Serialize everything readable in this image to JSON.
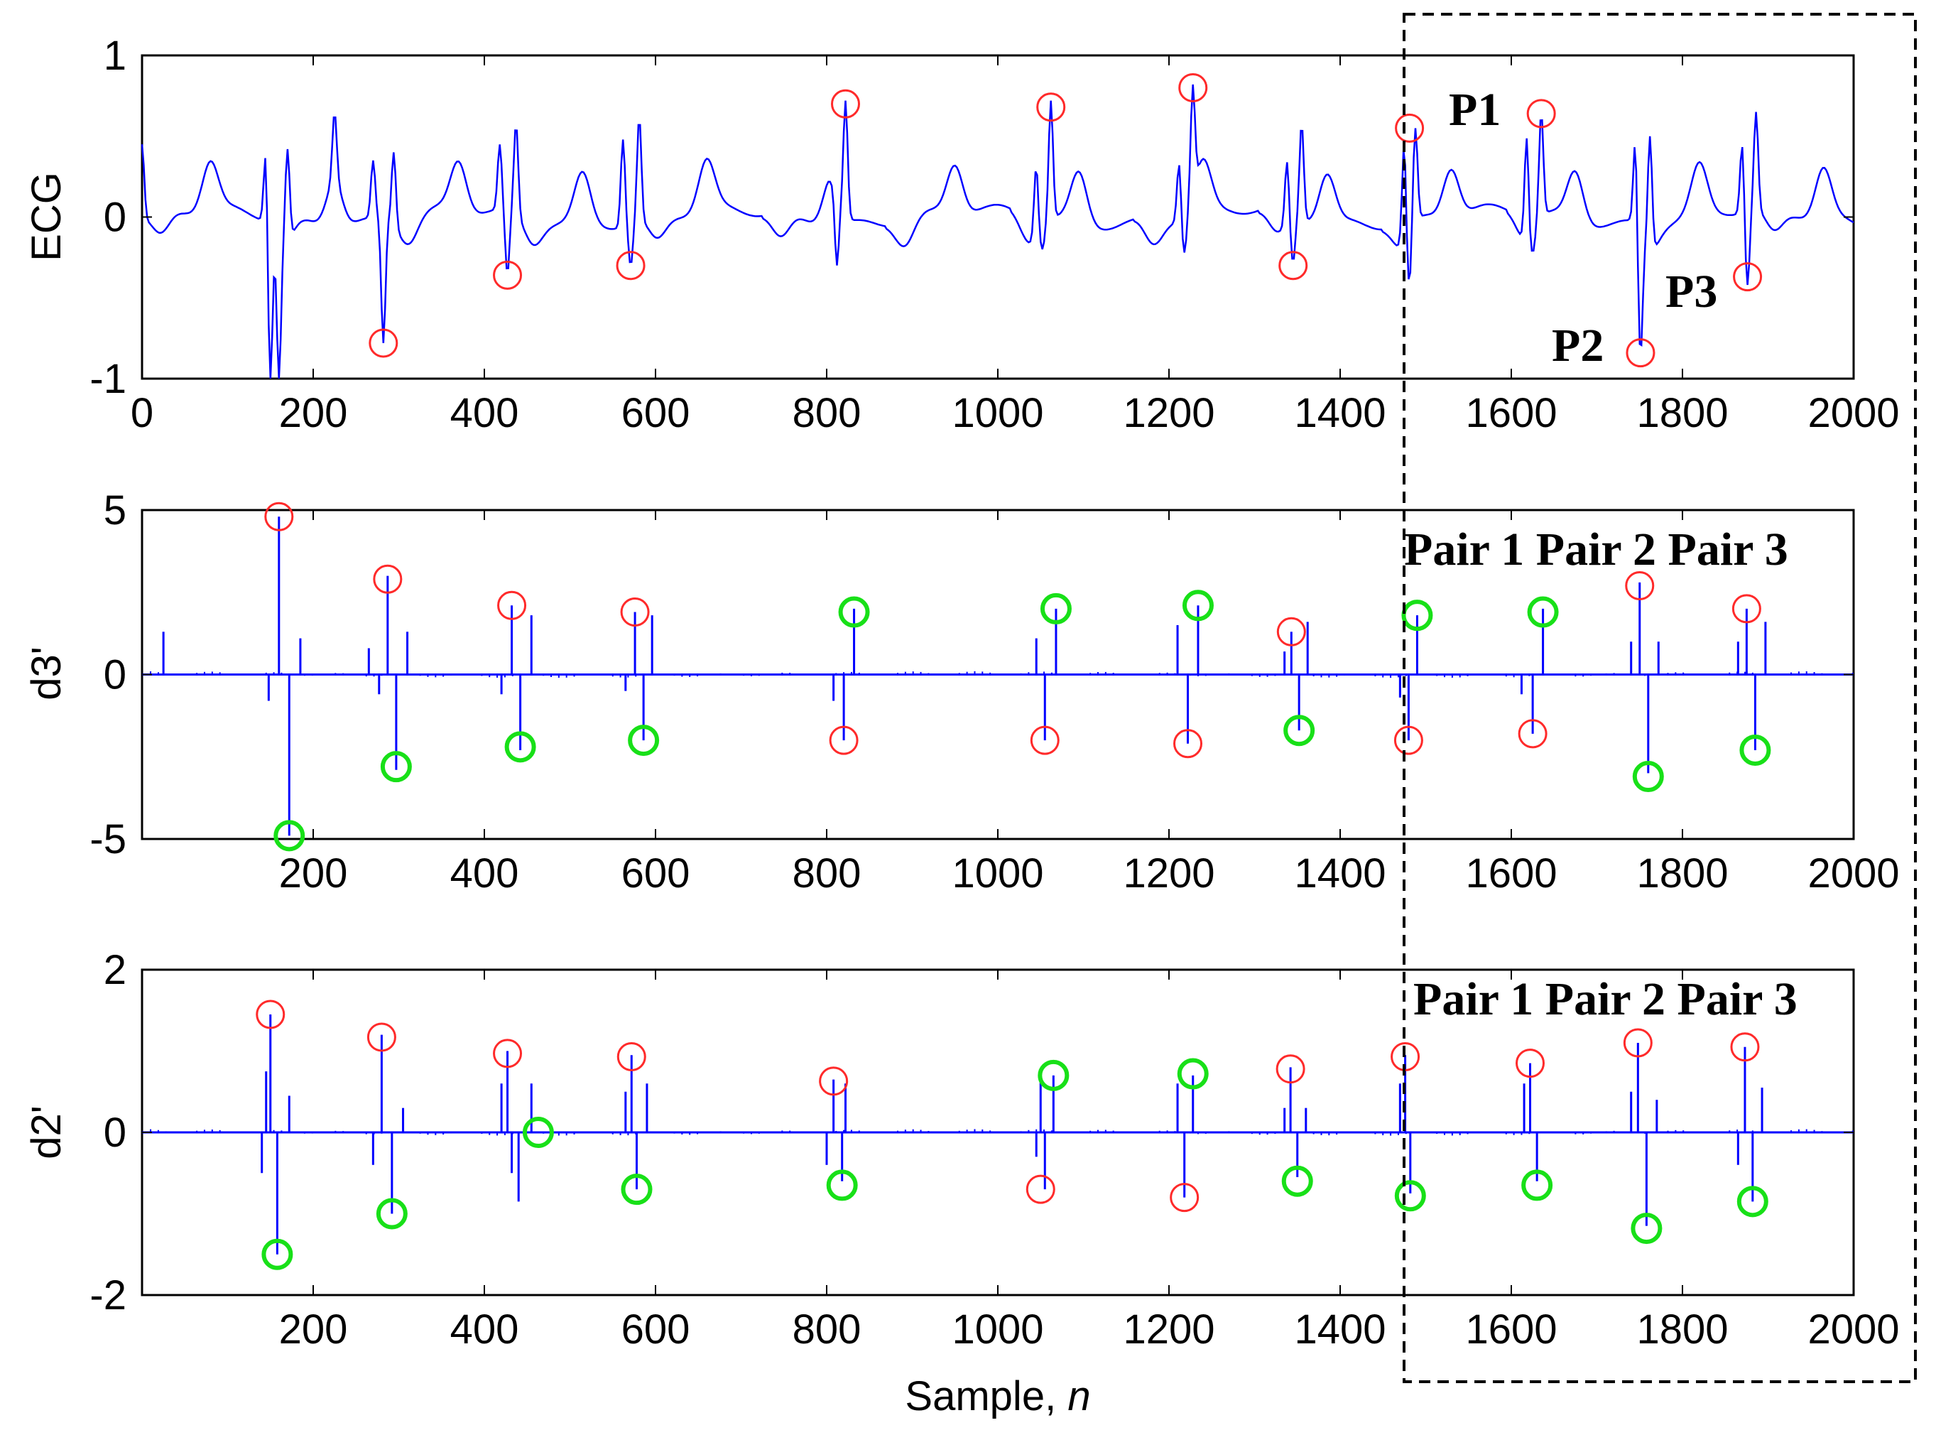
{
  "chart_data": [
    {
      "type": "line",
      "ylabel": "ECG",
      "xlabel": "",
      "xlim": [
        0,
        2000
      ],
      "ylim": [
        -1,
        1
      ],
      "xticks": [
        "0",
        "200",
        "400",
        "600",
        "800",
        "1000",
        "1200",
        "1400",
        "1600",
        "1800",
        "2000"
      ],
      "yticks": [
        "1",
        "0",
        "-1"
      ],
      "series_color": "#0000ff",
      "peaks": [
        {
          "x": 0,
          "y": 0.45
        },
        {
          "x": 145,
          "y": 0.48
        },
        {
          "x": 150,
          "y": -1.0
        },
        {
          "x": 160,
          "y": -1.0
        },
        {
          "x": 170,
          "y": 0.42
        },
        {
          "x": 225,
          "y": 0.65
        },
        {
          "x": 270,
          "y": 0.35
        },
        {
          "x": 282,
          "y": -0.78
        },
        {
          "x": 294,
          "y": 0.4
        },
        {
          "x": 418,
          "y": 0.45
        },
        {
          "x": 427,
          "y": -0.35
        },
        {
          "x": 437,
          "y": 0.58
        },
        {
          "x": 562,
          "y": 0.48
        },
        {
          "x": 571,
          "y": -0.3
        },
        {
          "x": 581,
          "y": 0.62
        },
        {
          "x": 805,
          "y": 0.22
        },
        {
          "x": 812,
          "y": -0.3
        },
        {
          "x": 822,
          "y": 0.72
        },
        {
          "x": 1045,
          "y": 0.32
        },
        {
          "x": 1052,
          "y": -0.2
        },
        {
          "x": 1062,
          "y": 0.72
        },
        {
          "x": 1212,
          "y": 0.35
        },
        {
          "x": 1218,
          "y": -0.22
        },
        {
          "x": 1228,
          "y": 0.82
        },
        {
          "x": 1338,
          "y": 0.35
        },
        {
          "x": 1345,
          "y": -0.28
        },
        {
          "x": 1355,
          "y": 0.58
        },
        {
          "x": 1475,
          "y": 0.48
        },
        {
          "x": 1481,
          "y": -0.42
        },
        {
          "x": 1488,
          "y": 0.55
        },
        {
          "x": 1618,
          "y": 0.5
        },
        {
          "x": 1625,
          "y": -0.22
        },
        {
          "x": 1635,
          "y": 0.65
        },
        {
          "x": 1745,
          "y": 0.5
        },
        {
          "x": 1751,
          "y": -0.85
        },
        {
          "x": 1762,
          "y": 0.5
        },
        {
          "x": 1870,
          "y": 0.48
        },
        {
          "x": 1876,
          "y": -0.42
        },
        {
          "x": 1886,
          "y": 0.65
        }
      ],
      "red_markers": [
        {
          "x": 282,
          "y": -0.78
        },
        {
          "x": 427,
          "y": -0.36
        },
        {
          "x": 571,
          "y": -0.3
        },
        {
          "x": 822,
          "y": 0.7
        },
        {
          "x": 1062,
          "y": 0.68
        },
        {
          "x": 1228,
          "y": 0.8
        },
        {
          "x": 1345,
          "y": -0.3
        },
        {
          "x": 1481,
          "y": 0.55
        },
        {
          "x": 1635,
          "y": 0.64
        },
        {
          "x": 1751,
          "y": -0.84
        },
        {
          "x": 1876,
          "y": -0.37
        }
      ],
      "annotations": [
        {
          "text": "P1",
          "x": 1560,
          "y": 0.62
        },
        {
          "text": "P2",
          "x": 1695,
          "y": -0.8
        },
        {
          "text": "P3",
          "x": 1810,
          "y": -0.5
        }
      ]
    },
    {
      "type": "bar",
      "ylabel": "d3'",
      "xlabel": "",
      "xlim": [
        0,
        2000
      ],
      "ylim": [
        -5,
        5
      ],
      "xticks": [
        "200",
        "400",
        "600",
        "800",
        "1000",
        "1200",
        "1400",
        "1600",
        "1800",
        "2000"
      ],
      "yticks": [
        "5",
        "0",
        "-5"
      ],
      "series_color": "#0000ff",
      "spikes": [
        {
          "x": 25,
          "y": 1.3
        },
        {
          "x": 148,
          "y": -0.8
        },
        {
          "x": 160,
          "y": 4.8
        },
        {
          "x": 172,
          "y": -4.9
        },
        {
          "x": 185,
          "y": 1.1
        },
        {
          "x": 265,
          "y": 0.8
        },
        {
          "x": 277,
          "y": -0.6
        },
        {
          "x": 287,
          "y": 3.0
        },
        {
          "x": 297,
          "y": -2.9
        },
        {
          "x": 310,
          "y": 1.3
        },
        {
          "x": 420,
          "y": -0.6
        },
        {
          "x": 432,
          "y": 2.1
        },
        {
          "x": 442,
          "y": -2.3
        },
        {
          "x": 455,
          "y": 1.8
        },
        {
          "x": 565,
          "y": -0.5
        },
        {
          "x": 576,
          "y": 1.9
        },
        {
          "x": 586,
          "y": -2.0
        },
        {
          "x": 596,
          "y": 1.8
        },
        {
          "x": 808,
          "y": -0.8
        },
        {
          "x": 820,
          "y": -2.0
        },
        {
          "x": 832,
          "y": 2.0
        },
        {
          "x": 1045,
          "y": 1.1
        },
        {
          "x": 1055,
          "y": -2.0
        },
        {
          "x": 1068,
          "y": 2.0
        },
        {
          "x": 1210,
          "y": 1.5
        },
        {
          "x": 1222,
          "y": -2.1
        },
        {
          "x": 1234,
          "y": 2.1
        },
        {
          "x": 1335,
          "y": 0.7
        },
        {
          "x": 1343,
          "y": 1.3
        },
        {
          "x": 1352,
          "y": -1.7
        },
        {
          "x": 1362,
          "y": 1.6
        },
        {
          "x": 1470,
          "y": -0.7
        },
        {
          "x": 1480,
          "y": -2.0
        },
        {
          "x": 1490,
          "y": 1.8
        },
        {
          "x": 1612,
          "y": -0.6
        },
        {
          "x": 1625,
          "y": -1.8
        },
        {
          "x": 1637,
          "y": 2.0
        },
        {
          "x": 1740,
          "y": 1.0
        },
        {
          "x": 1750,
          "y": 2.8
        },
        {
          "x": 1760,
          "y": -3.0
        },
        {
          "x": 1772,
          "y": 1.0
        },
        {
          "x": 1865,
          "y": 1.0
        },
        {
          "x": 1875,
          "y": 2.0
        },
        {
          "x": 1885,
          "y": -2.3
        },
        {
          "x": 1897,
          "y": 1.6
        }
      ],
      "red_markers": [
        {
          "x": 160,
          "y": 4.8
        },
        {
          "x": 287,
          "y": 2.9
        },
        {
          "x": 432,
          "y": 2.1
        },
        {
          "x": 576,
          "y": 1.9
        },
        {
          "x": 820,
          "y": -2.0
        },
        {
          "x": 1055,
          "y": -2.0
        },
        {
          "x": 1222,
          "y": -2.1
        },
        {
          "x": 1343,
          "y": 1.3
        },
        {
          "x": 1480,
          "y": -2.0
        },
        {
          "x": 1625,
          "y": -1.8
        },
        {
          "x": 1750,
          "y": 2.7
        },
        {
          "x": 1875,
          "y": 2.0
        }
      ],
      "green_markers": [
        {
          "x": 172,
          "y": -4.9
        },
        {
          "x": 297,
          "y": -2.8
        },
        {
          "x": 442,
          "y": -2.2
        },
        {
          "x": 586,
          "y": -2.0
        },
        {
          "x": 832,
          "y": 1.9
        },
        {
          "x": 1068,
          "y": 2.0
        },
        {
          "x": 1234,
          "y": 2.1
        },
        {
          "x": 1352,
          "y": -1.7
        },
        {
          "x": 1490,
          "y": 1.8
        },
        {
          "x": 1637,
          "y": 1.9
        },
        {
          "x": 1760,
          "y": -3.1
        },
        {
          "x": 1885,
          "y": -2.3
        }
      ],
      "annotation": "Pair 1 Pair 2 Pair 3"
    },
    {
      "type": "bar",
      "ylabel": "d2'",
      "xlabel": "Sample, n",
      "xlim": [
        0,
        2000
      ],
      "ylim": [
        -2,
        2
      ],
      "xticks": [
        "200",
        "400",
        "600",
        "800",
        "1000",
        "1200",
        "1400",
        "1600",
        "1800",
        "2000"
      ],
      "yticks": [
        "2",
        "0",
        "-2"
      ],
      "series_color": "#0000ff",
      "spikes": [
        {
          "x": 140,
          "y": -0.5
        },
        {
          "x": 145,
          "y": 0.75
        },
        {
          "x": 150,
          "y": 1.45
        },
        {
          "x": 158,
          "y": -1.5
        },
        {
          "x": 172,
          "y": 0.45
        },
        {
          "x": 270,
          "y": -0.4
        },
        {
          "x": 280,
          "y": 1.2
        },
        {
          "x": 292,
          "y": -1.0
        },
        {
          "x": 305,
          "y": 0.3
        },
        {
          "x": 420,
          "y": 0.6
        },
        {
          "x": 427,
          "y": 1.0
        },
        {
          "x": 432,
          "y": -0.5
        },
        {
          "x": 440,
          "y": -0.85
        },
        {
          "x": 455,
          "y": 0.6
        },
        {
          "x": 565,
          "y": 0.5
        },
        {
          "x": 572,
          "y": 0.95
        },
        {
          "x": 578,
          "y": -0.7
        },
        {
          "x": 590,
          "y": 0.6
        },
        {
          "x": 800,
          "y": -0.4
        },
        {
          "x": 808,
          "y": 0.65
        },
        {
          "x": 818,
          "y": -0.6
        },
        {
          "x": 822,
          "y": 0.6
        },
        {
          "x": 1045,
          "y": -0.3
        },
        {
          "x": 1050,
          "y": 0.7
        },
        {
          "x": 1055,
          "y": -0.7
        },
        {
          "x": 1065,
          "y": 0.7
        },
        {
          "x": 1210,
          "y": 0.6
        },
        {
          "x": 1218,
          "y": -0.8
        },
        {
          "x": 1228,
          "y": 0.7
        },
        {
          "x": 1335,
          "y": 0.3
        },
        {
          "x": 1342,
          "y": 0.8
        },
        {
          "x": 1350,
          "y": -0.55
        },
        {
          "x": 1360,
          "y": 0.3
        },
        {
          "x": 1470,
          "y": 0.6
        },
        {
          "x": 1476,
          "y": 0.95
        },
        {
          "x": 1482,
          "y": -0.75
        },
        {
          "x": 1615,
          "y": 0.6
        },
        {
          "x": 1622,
          "y": 0.85
        },
        {
          "x": 1630,
          "y": -0.6
        },
        {
          "x": 1740,
          "y": 0.5
        },
        {
          "x": 1748,
          "y": 1.1
        },
        {
          "x": 1758,
          "y": -1.15
        },
        {
          "x": 1770,
          "y": 0.4
        },
        {
          "x": 1865,
          "y": -0.4
        },
        {
          "x": 1873,
          "y": 1.05
        },
        {
          "x": 1882,
          "y": -0.85
        },
        {
          "x": 1893,
          "y": 0.55
        }
      ],
      "red_markers": [
        {
          "x": 150,
          "y": 1.45
        },
        {
          "x": 280,
          "y": 1.17
        },
        {
          "x": 427,
          "y": 0.97
        },
        {
          "x": 572,
          "y": 0.93
        },
        {
          "x": 808,
          "y": 0.63
        },
        {
          "x": 1050,
          "y": -0.7
        },
        {
          "x": 1218,
          "y": -0.8
        },
        {
          "x": 1342,
          "y": 0.78
        },
        {
          "x": 1476,
          "y": 0.93
        },
        {
          "x": 1622,
          "y": 0.85
        },
        {
          "x": 1748,
          "y": 1.1
        },
        {
          "x": 1873,
          "y": 1.05
        }
      ],
      "green_markers": [
        {
          "x": 158,
          "y": -1.5
        },
        {
          "x": 292,
          "y": -1.0
        },
        {
          "x": 463,
          "y": 0.0
        },
        {
          "x": 578,
          "y": -0.7
        },
        {
          "x": 818,
          "y": -0.65
        },
        {
          "x": 1065,
          "y": 0.7
        },
        {
          "x": 1228,
          "y": 0.72
        },
        {
          "x": 1350,
          "y": -0.6
        },
        {
          "x": 1482,
          "y": -0.78
        },
        {
          "x": 1630,
          "y": -0.65
        },
        {
          "x": 1758,
          "y": -1.18
        },
        {
          "x": 1882,
          "y": -0.85
        }
      ],
      "annotation": "Pair 1 Pair 2 Pair 3"
    }
  ],
  "colors": {
    "signal": "#0000ff",
    "red_marker": "#ff2a2a",
    "green_marker": "#18e018"
  }
}
